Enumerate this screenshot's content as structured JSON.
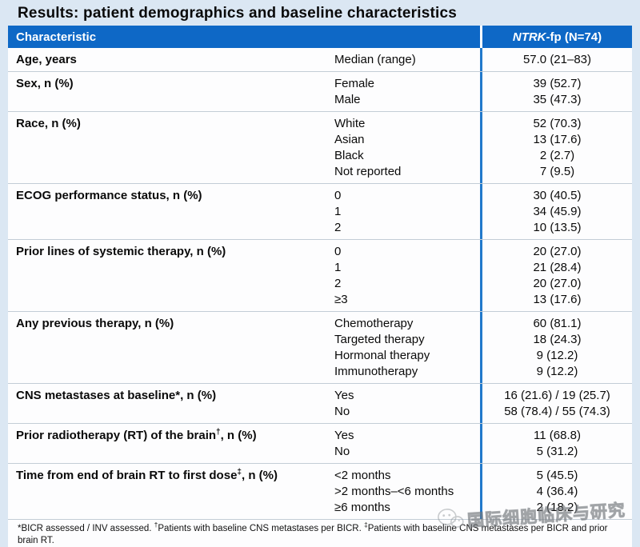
{
  "title": "Results: patient demographics and baseline characteristics",
  "colors": {
    "header_blue": "#0e68c6",
    "divider_blue": "#2279cb",
    "page_background": "#dbe7f3",
    "row_separator": "#c3cdd6"
  },
  "table": {
    "header": {
      "characteristic": "Characteristic",
      "group_italic": "NTRK",
      "group_rest": "-fp (N=74)"
    },
    "rows": [
      {
        "label": "Age, years",
        "sup": "",
        "tail": "",
        "items": [
          {
            "sub": "Median (range)",
            "value": "57.0 (21–83)"
          }
        ]
      },
      {
        "label": "Sex, n (%)",
        "sup": "",
        "tail": "",
        "items": [
          {
            "sub": "Female",
            "value": "39 (52.7)"
          },
          {
            "sub": "Male",
            "value": "35 (47.3)"
          }
        ]
      },
      {
        "label": "Race, n (%)",
        "sup": "",
        "tail": "",
        "items": [
          {
            "sub": "White",
            "value": "52 (70.3)"
          },
          {
            "sub": "Asian",
            "value": "13 (17.6)"
          },
          {
            "sub": "Black",
            "value": "2 (2.7)"
          },
          {
            "sub": "Not reported",
            "value": "7 (9.5)"
          }
        ]
      },
      {
        "label": "ECOG performance status, n (%)",
        "sup": "",
        "tail": "",
        "items": [
          {
            "sub": "0",
            "value": "30 (40.5)"
          },
          {
            "sub": "1",
            "value": "34 (45.9)"
          },
          {
            "sub": "2",
            "value": "10 (13.5)"
          }
        ]
      },
      {
        "label": "Prior lines of systemic therapy, n (%)",
        "sup": "",
        "tail": "",
        "items": [
          {
            "sub": "0",
            "value": "20 (27.0)"
          },
          {
            "sub": "1",
            "value": "21 (28.4)"
          },
          {
            "sub": "2",
            "value": "20 (27.0)"
          },
          {
            "sub": "≥3",
            "value": "13 (17.6)"
          }
        ]
      },
      {
        "label": "Any previous therapy, n (%)",
        "sup": "",
        "tail": "",
        "items": [
          {
            "sub": "Chemotherapy",
            "value": "60 (81.1)"
          },
          {
            "sub": "Targeted therapy",
            "value": "18 (24.3)"
          },
          {
            "sub": "Hormonal therapy",
            "value": "9 (12.2)"
          },
          {
            "sub": "Immunotherapy",
            "value": "9 (12.2)"
          }
        ]
      },
      {
        "label": "CNS metastases at baseline*, n (%)",
        "sup": "",
        "tail": "",
        "items": [
          {
            "sub": "Yes",
            "value": "16 (21.6) / 19 (25.7)"
          },
          {
            "sub": "No",
            "value": "58 (78.4) / 55 (74.3)"
          }
        ]
      },
      {
        "label": "Prior radiotherapy (RT) of the brain",
        "sup": "†",
        "tail": ", n (%)",
        "items": [
          {
            "sub": "Yes",
            "value": "11 (68.8)"
          },
          {
            "sub": "No",
            "value": "5 (31.2)"
          }
        ]
      },
      {
        "label": "Time from end of brain RT to first dose",
        "sup": "‡",
        "tail": ", n (%)",
        "items": [
          {
            "sub": "<2 months",
            "value": "5 (45.5)"
          },
          {
            "sub": ">2 months–<6 months",
            "value": "4 (36.4)"
          },
          {
            "sub": "≥6 months",
            "value": "2 (18.2)"
          }
        ]
      }
    ],
    "footnote_segments": [
      {
        "text": "*BICR assessed / INV assessed. "
      },
      {
        "sup": "†"
      },
      {
        "text": "Patients with baseline CNS metastases per BICR. "
      },
      {
        "sup": "‡"
      },
      {
        "text": "Patients with baseline CNS metastases  per BICR and prior brain RT."
      }
    ]
  },
  "watermark": {
    "text": "国际细胞临床与研究",
    "icon": "wechat-logo-icon"
  }
}
